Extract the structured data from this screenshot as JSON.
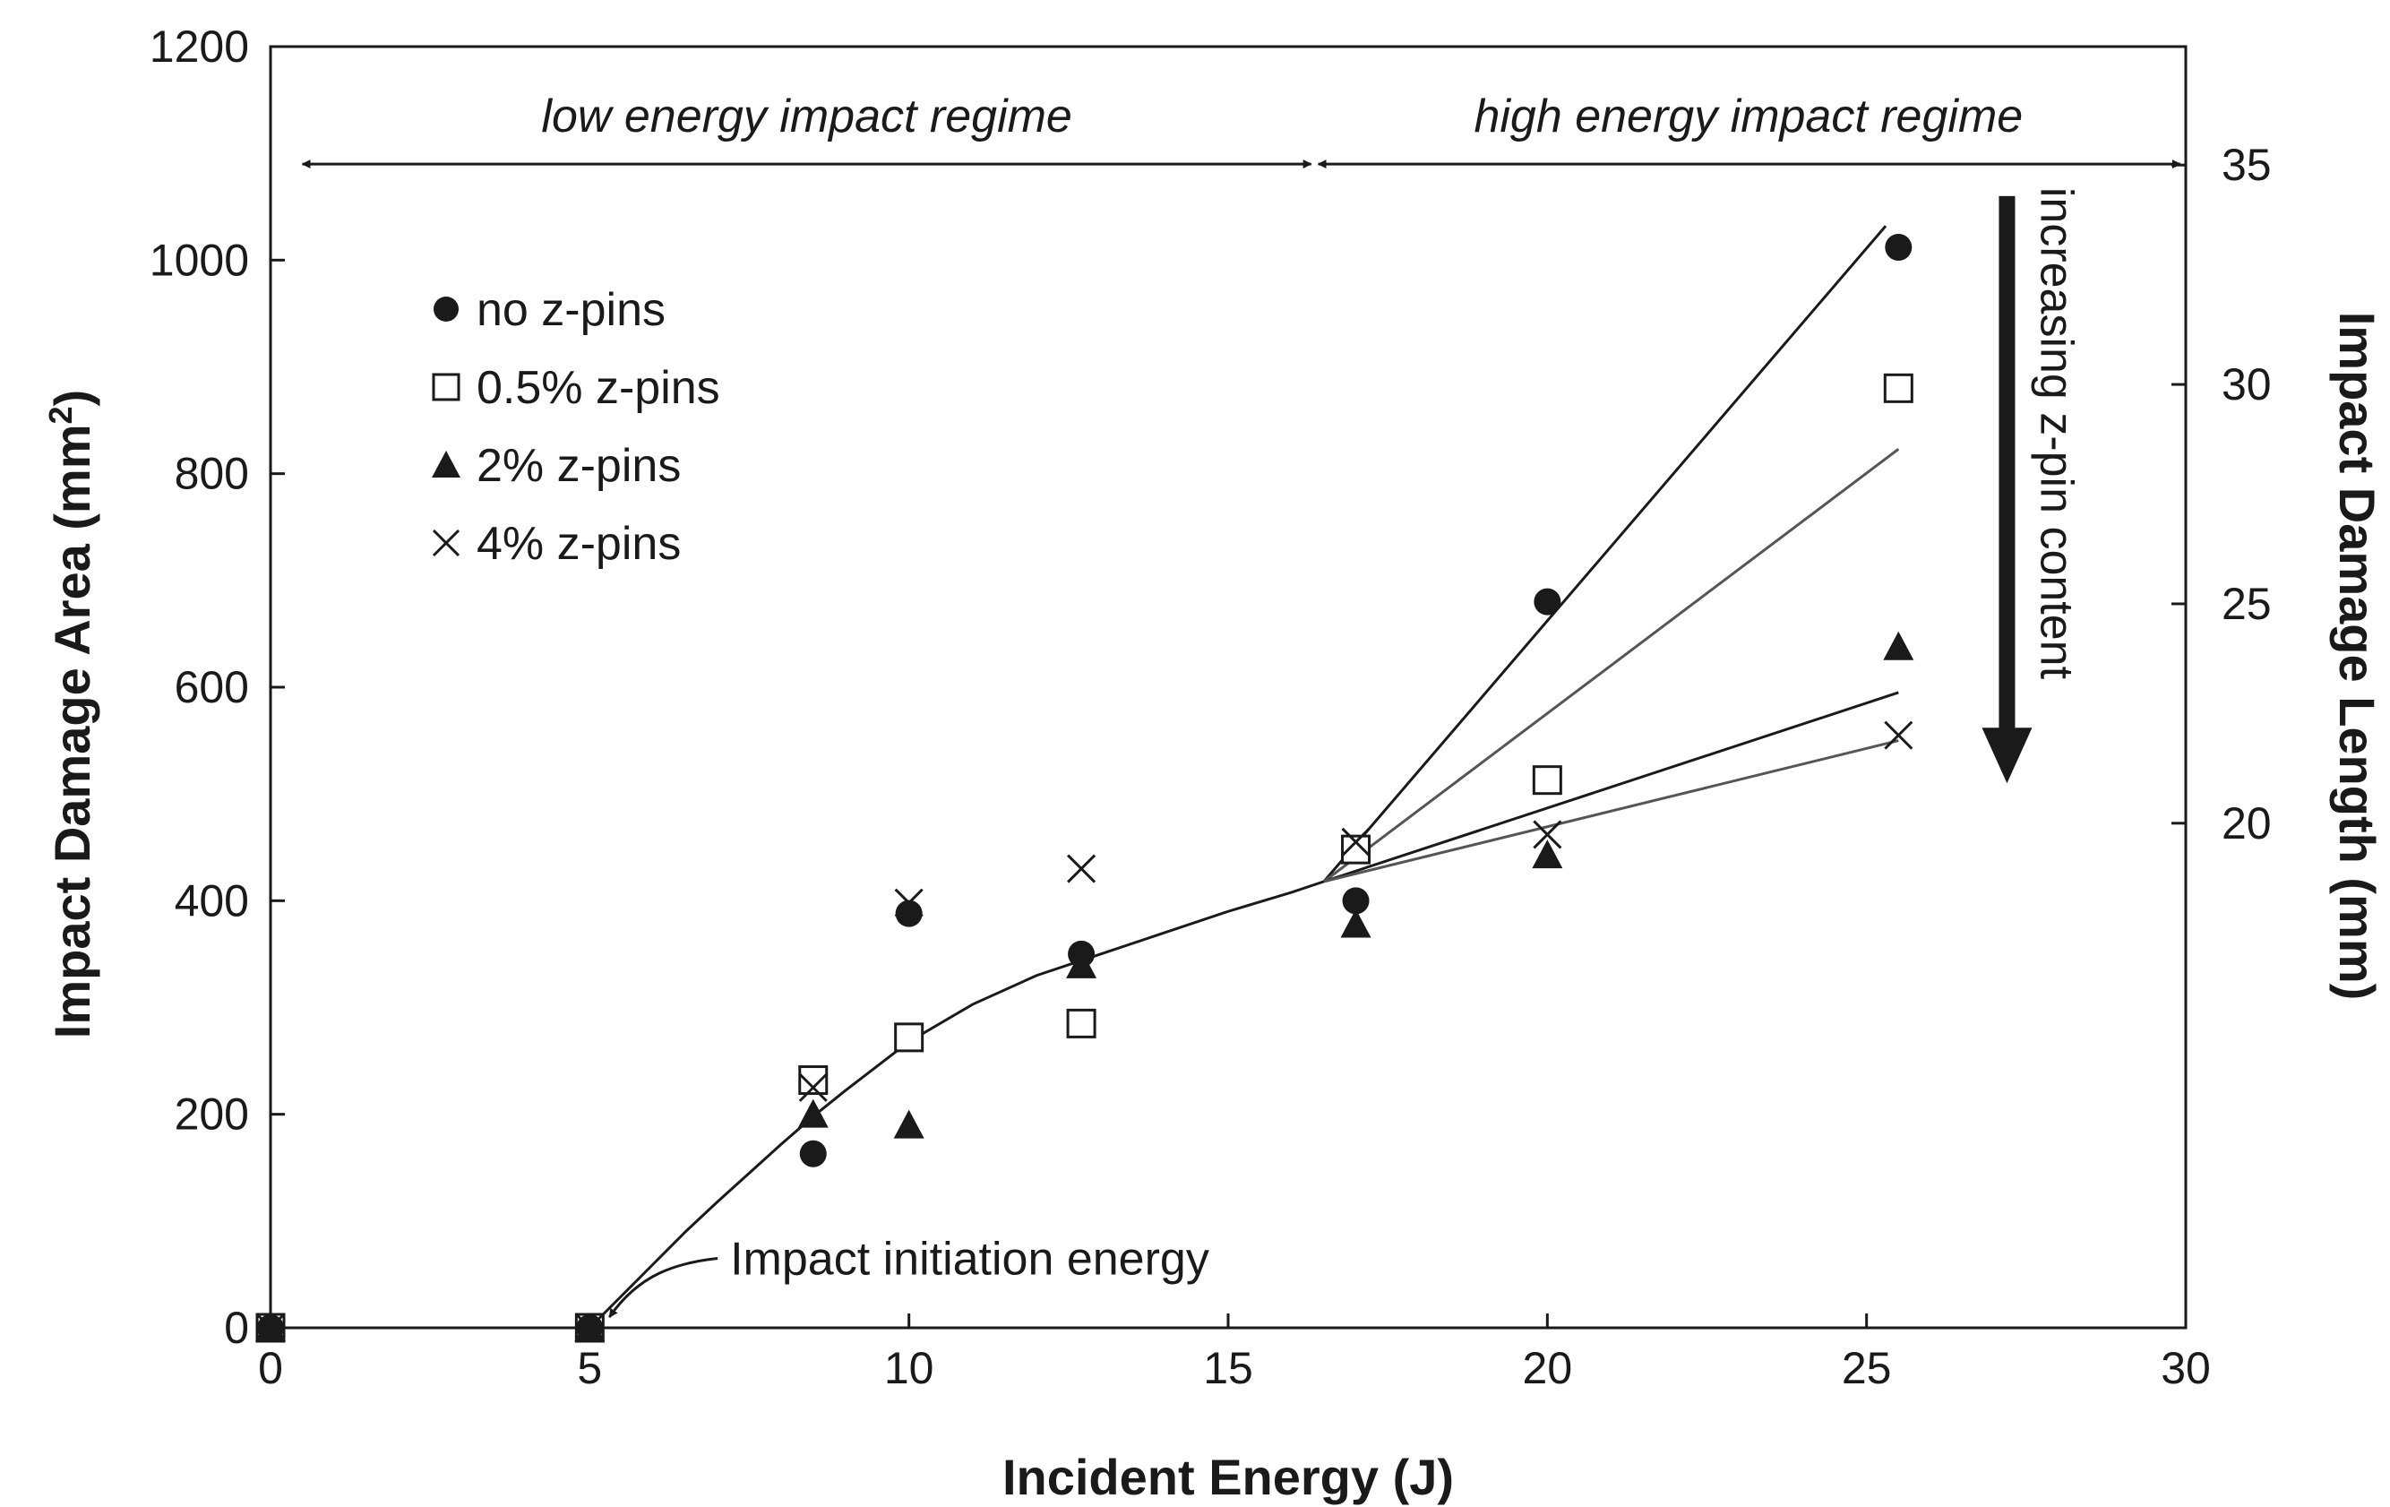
{
  "chart_data": {
    "type": "scatter",
    "title": "",
    "xlabel": "Incident Energy (J)",
    "ylabel": "Impact Damage Area (mm²)",
    "ylabel_main": "Impact Damage Area (mm",
    "ylabel_sup": "2",
    "ylabel_close": ")",
    "y2label": "Impact Damage Length (mm)",
    "xlim": [
      0,
      30
    ],
    "ylim": [
      0,
      1200
    ],
    "y2lim": [
      8.5,
      37.7
    ],
    "xticks": [
      0,
      5,
      10,
      15,
      20,
      25,
      30
    ],
    "yticks": [
      0,
      200,
      400,
      600,
      800,
      1000,
      1200
    ],
    "y2ticks": [
      20,
      25,
      30,
      35
    ],
    "xtick_labels": [
      "0",
      "5",
      "10",
      "15",
      "20",
      "25",
      "30"
    ],
    "ytick_labels": [
      "0",
      "200",
      "400",
      "600",
      "800",
      "1000",
      "1200"
    ],
    "y2tick_labels": [
      "20",
      "25",
      "30",
      "35"
    ],
    "grid": false,
    "legend_position": "upper-left",
    "series": [
      {
        "name": "no z-pins",
        "label": "no z-pins",
        "marker": "circle",
        "x": [
          0,
          5,
          8.5,
          10,
          12.7,
          17,
          20,
          25.5
        ],
        "y": [
          0,
          0,
          163,
          388,
          350,
          400,
          680,
          1012
        ]
      },
      {
        "name": "0.5% z-pins",
        "label": "0.5% z-pins",
        "marker": "square",
        "x": [
          0,
          5,
          8.5,
          10,
          12.7,
          17,
          20,
          25.5
        ],
        "y": [
          0,
          0,
          232,
          272,
          285,
          448,
          513,
          880
        ]
      },
      {
        "name": "2% z-pins",
        "label": "2% z-pins",
        "marker": "triangle",
        "x": [
          0,
          5,
          8.5,
          10,
          12.7,
          17,
          20,
          25.5
        ],
        "y": [
          0,
          0,
          200,
          190,
          340,
          378,
          443,
          638
        ]
      },
      {
        "name": "4% z-pins",
        "label": "4% z-pins",
        "marker": "cross",
        "x": [
          0,
          5,
          8.5,
          10,
          12.7,
          17,
          20,
          25.5
        ],
        "y": [
          0,
          0,
          225,
          398,
          430,
          455,
          462,
          555
        ]
      }
    ],
    "fit_curve": {
      "name": "common low-energy fit",
      "x": [
        5,
        5.5,
        6,
        6.5,
        7,
        7.5,
        8,
        8.5,
        9,
        9.5,
        10,
        11,
        12,
        13,
        14,
        15,
        16,
        16.5
      ],
      "y": [
        0,
        30,
        60,
        90,
        118,
        145,
        172,
        198,
        222,
        245,
        268,
        303,
        330,
        350,
        370,
        390,
        408,
        418
      ]
    },
    "trend_lines": [
      {
        "name": "no z-pins trend",
        "x": [
          16.5,
          25.3
        ],
        "y": [
          418,
          1032
        ]
      },
      {
        "name": "0.5% z-pins trend",
        "x": [
          16.5,
          25.5
        ],
        "y": [
          418,
          823
        ]
      },
      {
        "name": "2% z-pins trend",
        "x": [
          16.5,
          25.5
        ],
        "y": [
          418,
          595
        ]
      },
      {
        "name": "4% z-pins trend",
        "x": [
          16.5,
          25.5
        ],
        "y": [
          418,
          550
        ]
      }
    ],
    "annotations": {
      "low_regime": {
        "text": "low energy impact regime",
        "x_from": 0.5,
        "x_to": 16.3,
        "y": 1090
      },
      "high_regime": {
        "text": "high energy impact regime",
        "x_from": 16.3,
        "x_to": 30,
        "y": 1090
      },
      "increasing_arrow": {
        "text": "increasing z-pin content",
        "x": 27.2,
        "y_from": 1060,
        "y_to": 510
      },
      "initiation": {
        "text": "Impact initiation energy",
        "x": 5,
        "y": 0,
        "text_x": 7.2,
        "text_y": 65
      }
    },
    "colors": {
      "ink": "#1a1a1a",
      "trend_dark": "#1a1a1a",
      "trend_grey": "#555555"
    }
  }
}
